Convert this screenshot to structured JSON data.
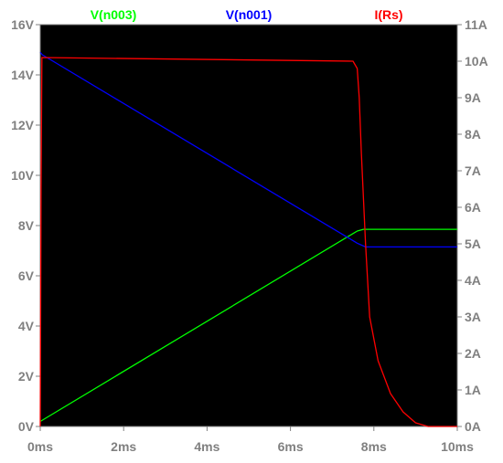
{
  "chart_data": {
    "type": "line",
    "x_unit": "ms",
    "xlim": [
      0,
      10
    ],
    "x_ticks": [
      {
        "value": 0,
        "label": "0ms"
      },
      {
        "value": 2,
        "label": "2ms"
      },
      {
        "value": 4,
        "label": "4ms"
      },
      {
        "value": 6,
        "label": "6ms"
      },
      {
        "value": 8,
        "label": "8ms"
      },
      {
        "value": 10,
        "label": "10ms"
      }
    ],
    "left_axis": {
      "unit": "V",
      "ylim": [
        0,
        16
      ],
      "ticks": [
        {
          "value": 0,
          "label": "0V"
        },
        {
          "value": 2,
          "label": "2V"
        },
        {
          "value": 4,
          "label": "4V"
        },
        {
          "value": 6,
          "label": "6V"
        },
        {
          "value": 8,
          "label": "8V"
        },
        {
          "value": 10,
          "label": "10V"
        },
        {
          "value": 12,
          "label": "12V"
        },
        {
          "value": 14,
          "label": "14V"
        },
        {
          "value": 16,
          "label": "16V"
        }
      ]
    },
    "right_axis": {
      "unit": "A",
      "ylim": [
        0,
        11
      ],
      "ticks": [
        {
          "value": 0,
          "label": "0A"
        },
        {
          "value": 1,
          "label": "1A"
        },
        {
          "value": 2,
          "label": "2A"
        },
        {
          "value": 3,
          "label": "3A"
        },
        {
          "value": 4,
          "label": "4A"
        },
        {
          "value": 5,
          "label": "5A"
        },
        {
          "value": 6,
          "label": "6A"
        },
        {
          "value": 7,
          "label": "7A"
        },
        {
          "value": 8,
          "label": "8A"
        },
        {
          "value": 9,
          "label": "9A"
        },
        {
          "value": 10,
          "label": "10A"
        },
        {
          "value": 11,
          "label": "11A"
        }
      ]
    },
    "grid": false,
    "legend_placement": "top",
    "background": "#000000",
    "axis_color": "#808080",
    "tick_label_color": "#808080",
    "series": [
      {
        "name": "V(n003)",
        "axis": "left",
        "color": "#00ff00",
        "points": [
          [
            0,
            0.2
          ],
          [
            7.6,
            7.78
          ],
          [
            7.75,
            7.85
          ],
          [
            10,
            7.85
          ]
        ]
      },
      {
        "name": "V(n001)",
        "axis": "left",
        "color": "#0000ff",
        "points": [
          [
            0,
            14.9
          ],
          [
            0.05,
            14.8
          ],
          [
            7.6,
            7.3
          ],
          [
            7.8,
            7.15
          ],
          [
            10,
            7.15
          ]
        ]
      },
      {
        "name": "I(Rs)",
        "axis": "right",
        "color": "#ff0000",
        "points": [
          [
            0,
            0
          ],
          [
            0.02,
            6.5
          ],
          [
            0.04,
            10.1
          ],
          [
            7.5,
            10.0
          ],
          [
            7.6,
            9.8
          ],
          [
            7.65,
            9.0
          ],
          [
            7.7,
            7.5
          ],
          [
            7.8,
            5.0
          ],
          [
            7.9,
            3.0
          ],
          [
            8.1,
            1.8
          ],
          [
            8.4,
            0.9
          ],
          [
            8.7,
            0.4
          ],
          [
            9.0,
            0.1
          ],
          [
            9.3,
            0.0
          ],
          [
            10,
            0.0
          ]
        ]
      }
    ]
  }
}
